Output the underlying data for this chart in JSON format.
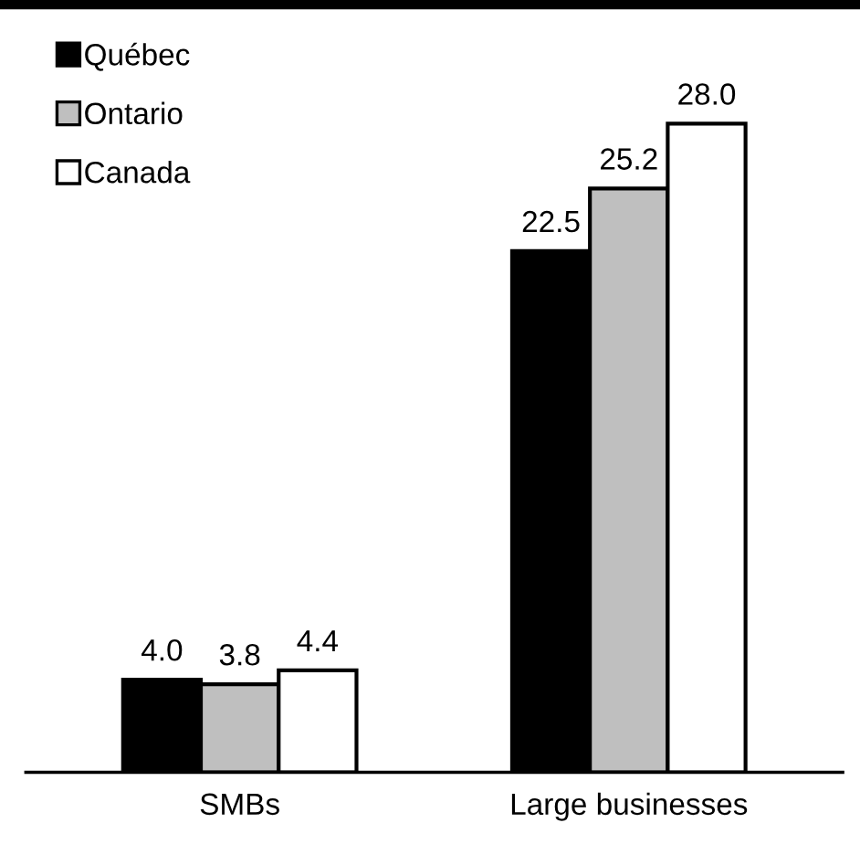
{
  "chart_data": {
    "type": "bar",
    "categories": [
      "SMBs",
      "Large businesses"
    ],
    "series": [
      {
        "name": "Québec",
        "color": "#000000",
        "values": [
          4.0,
          22.5
        ],
        "value_labels": [
          "4.0",
          "22.5"
        ]
      },
      {
        "name": "Ontario",
        "color": "#bfbfbf",
        "values": [
          3.8,
          25.2
        ],
        "value_labels": [
          "3.8",
          "25.2"
        ]
      },
      {
        "name": "Canada",
        "color": "#ffffff",
        "values": [
          4.4,
          28.0
        ],
        "value_labels": [
          "4.4",
          "28.0"
        ]
      }
    ],
    "legend": "top left",
    "grid": false,
    "tick_labels": "x"
  }
}
